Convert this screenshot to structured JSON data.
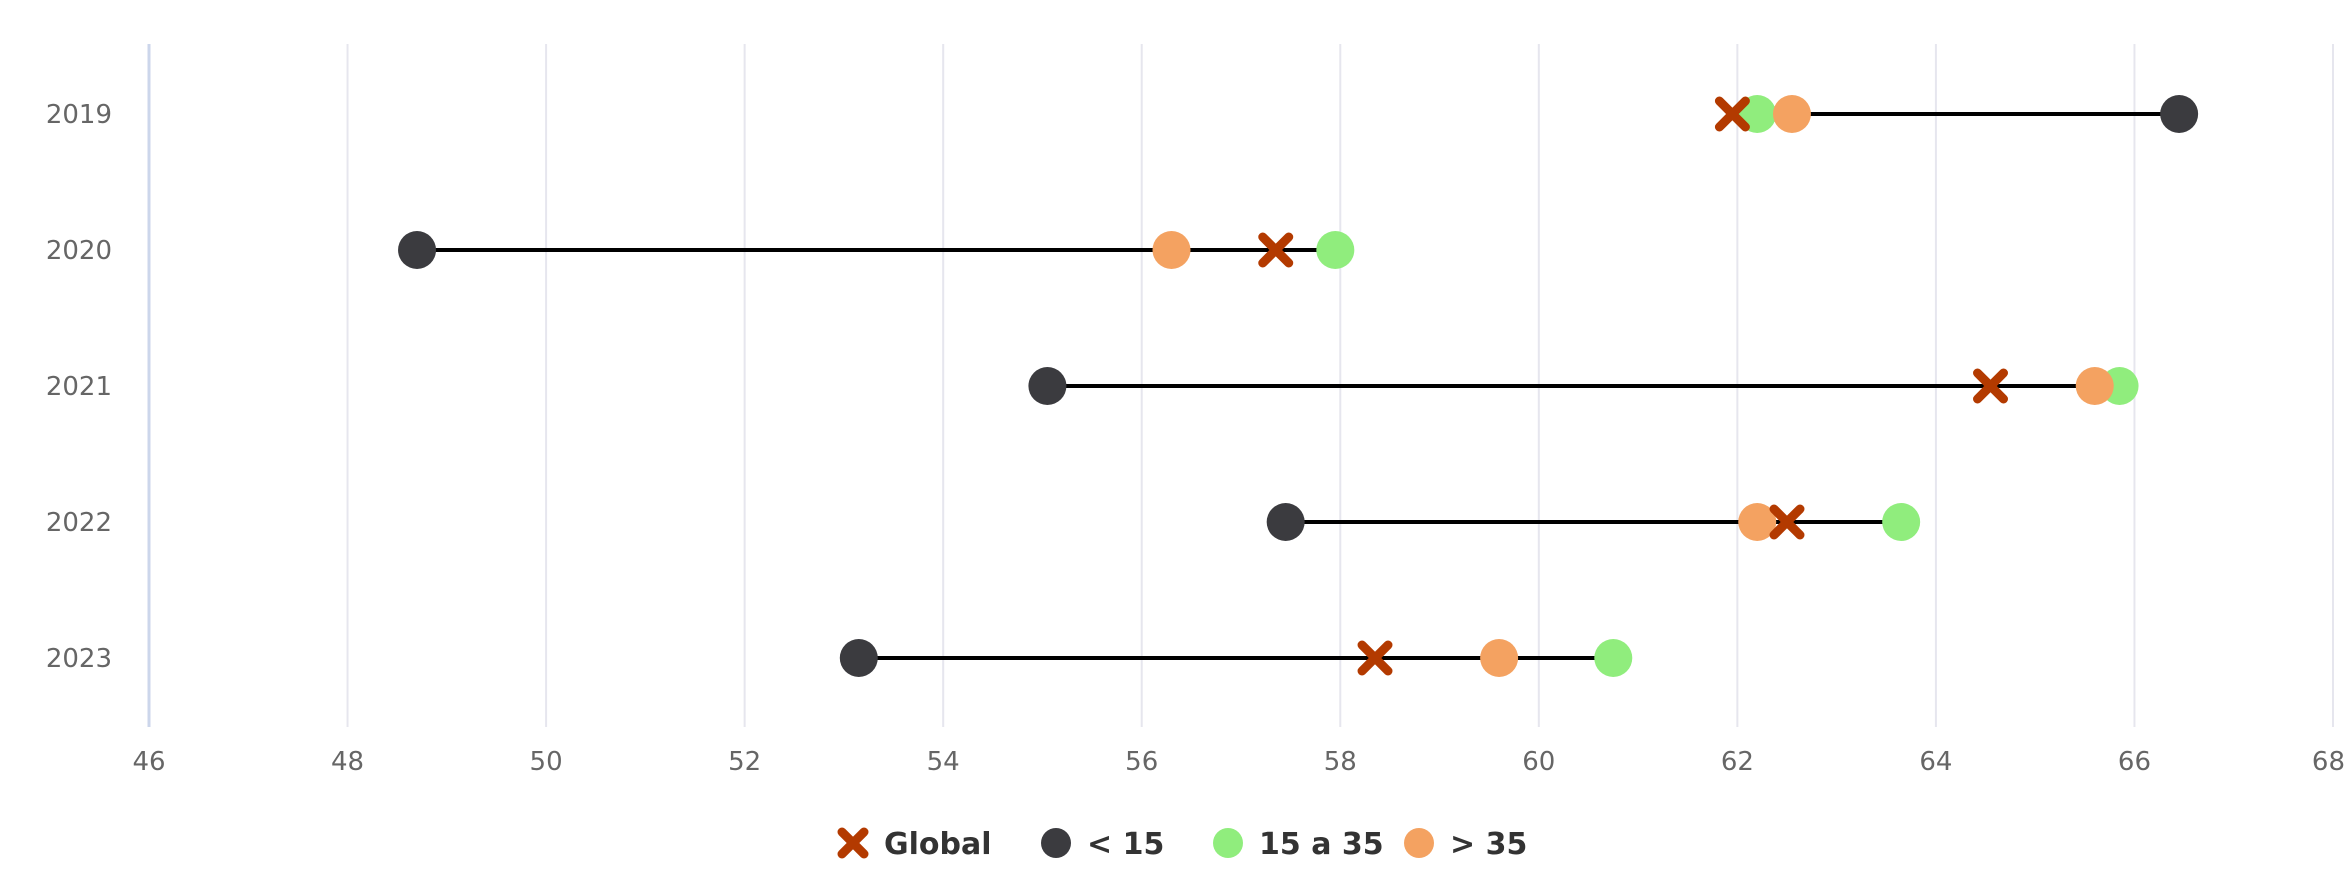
{
  "chart_data": {
    "type": "dumbbell",
    "title": "",
    "xlabel": "",
    "ylabel": "",
    "xlim": [
      46,
      68
    ],
    "x_ticks": [
      46,
      48,
      50,
      52,
      54,
      56,
      58,
      60,
      62,
      64,
      66,
      68
    ],
    "categories": [
      "2019",
      "2020",
      "2021",
      "2022",
      "2023"
    ],
    "grid": true,
    "legend_position": "bottom",
    "series": [
      {
        "name": "Global",
        "marker": "x",
        "color": "#b33a00",
        "values": [
          61.95,
          57.35,
          64.55,
          62.5,
          58.35
        ]
      },
      {
        "name": "< 15",
        "marker": "circle",
        "color": "#3b3b3f",
        "values": [
          66.45,
          48.7,
          55.05,
          57.45,
          53.15
        ]
      },
      {
        "name": "15 a 35",
        "marker": "circle",
        "color": "#90ed7d",
        "values": [
          62.2,
          57.95,
          65.85,
          63.65,
          60.75
        ]
      },
      {
        "name": "> 35",
        "marker": "circle",
        "color": "#f4a261",
        "values": [
          62.55,
          56.3,
          65.6,
          62.2,
          59.6
        ]
      }
    ]
  }
}
